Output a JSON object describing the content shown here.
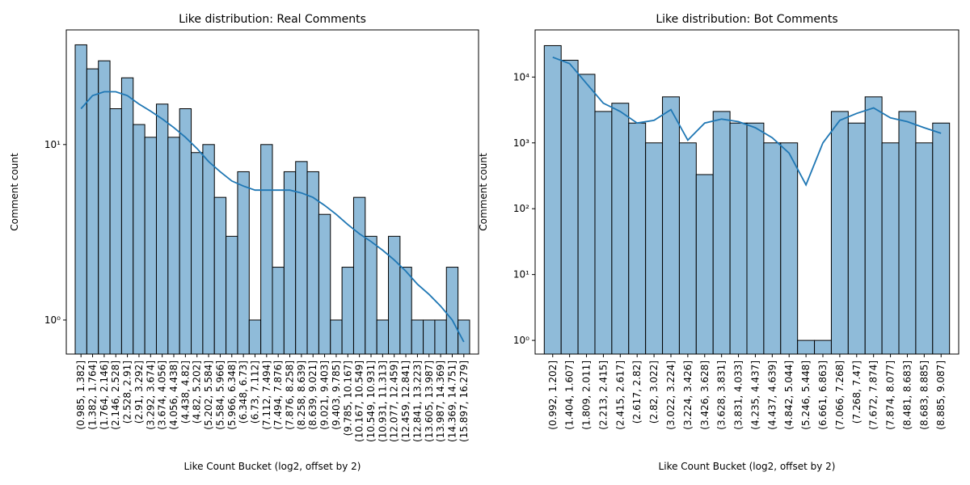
{
  "chart_data": [
    {
      "type": "bar",
      "title": "Like distribution: Real Comments",
      "xlabel": "Like Count Bucket (log2, offset by 2)",
      "ylabel": "Comment count",
      "log_scale": true,
      "color": "#8fbbd9",
      "edge_color": "#000000",
      "kde_color": "#1f77b4",
      "categories": [
        "(0.985, 1.382]",
        "(1.382, 1.764]",
        "(1.764, 2.146]",
        "(2.146, 2.528]",
        "(2.528, 2.91]",
        "(2.91, 3.292]",
        "(3.292, 3.674]",
        "(3.674, 4.056]",
        "(4.056, 4.438]",
        "(4.438, 4.82]",
        "(4.82, 5.202]",
        "(5.202, 5.584]",
        "(5.584, 5.966]",
        "(5.966, 6.348]",
        "(6.348, 6.73]",
        "(6.73, 7.112]",
        "(7.112, 7.494]",
        "(7.494, 7.876]",
        "(7.876, 8.258]",
        "(8.258, 8.639]",
        "(8.639, 9.021]",
        "(9.021, 9.403]",
        "(9.403, 9.785]",
        "(9.785, 10.167]",
        "(10.167, 10.549]",
        "(10.549, 10.931]",
        "(10.931, 11.313]",
        "(12.077, 12.459]",
        "(12.459, 12.841]",
        "(12.841, 13.223]",
        "(13.605, 13.987]",
        "(13.987, 14.369]",
        "(14.369, 14.751]",
        "(15.897, 16.279]"
      ],
      "values": [
        37,
        27,
        30,
        16,
        24,
        13,
        11,
        17,
        11,
        16,
        9,
        10,
        5,
        3,
        7,
        1,
        10,
        2,
        7,
        8,
        7,
        4,
        1,
        2,
        5,
        3,
        1,
        3,
        2,
        1,
        1,
        1,
        2,
        1
      ],
      "kde_values": [
        16,
        19,
        20,
        20,
        19,
        17,
        15.5,
        14,
        12.5,
        11,
        9.5,
        8,
        7,
        6.2,
        5.8,
        5.5,
        5.5,
        5.5,
        5.5,
        5.3,
        5,
        4.5,
        4,
        3.5,
        3.1,
        2.8,
        2.5,
        2.2,
        1.9,
        1.6,
        1.4,
        1.2,
        1,
        0.75
      ],
      "ylim": [
        0.64,
        45
      ],
      "yticks": [
        {
          "value": 1,
          "label": "10⁰"
        },
        {
          "value": 10,
          "label": "10¹"
        }
      ]
    },
    {
      "type": "bar",
      "title": "Like distribution: Bot Comments",
      "xlabel": "Like Count Bucket (log2, offset by 2)",
      "ylabel": "Comment count",
      "log_scale": true,
      "color": "#8fbbd9",
      "edge_color": "#000000",
      "kde_color": "#1f77b4",
      "categories": [
        "(0.992, 1.202]",
        "(1.404, 1.607]",
        "(1.809, 2.011]",
        "(2.213, 2.415]",
        "(2.415, 2.617]",
        "(2.617, 2.82]",
        "(2.82, 3.022]",
        "(3.022, 3.224]",
        "(3.224, 3.426]",
        "(3.426, 3.628]",
        "(3.628, 3.831]",
        "(3.831, 4.033]",
        "(4.235, 4.437]",
        "(4.437, 4.639]",
        "(4.842, 5.044]",
        "(5.246, 5.448]",
        "(6.661, 6.863]",
        "(7.066, 7.268]",
        "(7.268, 7.47]",
        "(7.672, 7.874]",
        "(7.874, 8.077]",
        "(8.481, 8.683]",
        "(8.683, 8.885]",
        "(8.885, 9.087]"
      ],
      "values": [
        30000,
        18000,
        11000,
        3000,
        4000,
        2000,
        1000,
        5000,
        1000,
        330,
        3000,
        2000,
        2000,
        1000,
        1000,
        1,
        1,
        3000,
        2000,
        5000,
        1000,
        3000,
        1000,
        2000
      ],
      "kde_values": [
        20000,
        16000,
        8000,
        4000,
        3000,
        2000,
        2200,
        3200,
        1100,
        2000,
        2300,
        2100,
        1700,
        1200,
        700,
        230,
        1000,
        2200,
        2800,
        3400,
        2400,
        2100,
        1700,
        1400
      ],
      "ylim": [
        0.62,
        52000
      ],
      "yticks": [
        {
          "value": 1,
          "label": "10⁰"
        },
        {
          "value": 10,
          "label": "10¹"
        },
        {
          "value": 100,
          "label": "10²"
        },
        {
          "value": 1000,
          "label": "10³"
        },
        {
          "value": 10000,
          "label": "10⁴"
        }
      ]
    }
  ]
}
